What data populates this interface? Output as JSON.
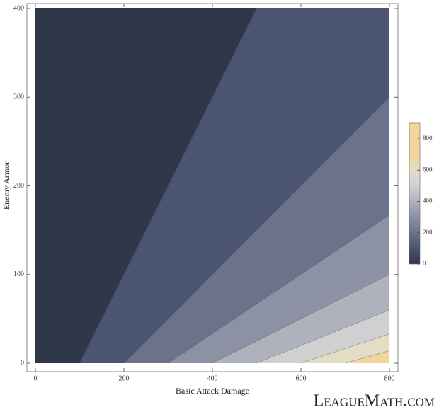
{
  "chart_data": {
    "type": "contour",
    "xlabel": "Basic Attack Damage",
    "ylabel": "Enemy Armor",
    "xlim": [
      0,
      800
    ],
    "ylim": [
      0,
      400
    ],
    "xticks": [
      0,
      200,
      400,
      600,
      800
    ],
    "yticks": [
      0,
      100,
      200,
      300,
      400
    ],
    "base_color": "#2f374b",
    "contours": [
      {
        "level": 100,
        "color": "#4b5470",
        "x": [
          100,
          500
        ],
        "y": [
          0,
          400
        ]
      },
      {
        "level": 200,
        "color": "#6c7289",
        "x": [
          200,
          800
        ],
        "y": [
          0,
          300
        ]
      },
      {
        "level": 300,
        "color": "#8c91a4",
        "x": [
          300,
          800
        ],
        "y": [
          0,
          167
        ]
      },
      {
        "level": 400,
        "color": "#afb2bd",
        "x": [
          400,
          800
        ],
        "y": [
          0,
          100
        ]
      },
      {
        "level": 500,
        "color": "#d0d0d2",
        "x": [
          500,
          800
        ],
        "y": [
          0,
          60
        ]
      },
      {
        "level": 600,
        "color": "#e4ddc6",
        "x": [
          600,
          800
        ],
        "y": [
          0,
          33
        ]
      },
      {
        "level": 700,
        "color": "#f0d59c",
        "x": [
          700,
          800
        ],
        "y": [
          0,
          14
        ]
      }
    ],
    "colorbar": {
      "lim": [
        0,
        900
      ],
      "ticks": [
        0,
        200,
        400,
        600,
        800
      ]
    },
    "watermark": "LeagueMath.com"
  }
}
